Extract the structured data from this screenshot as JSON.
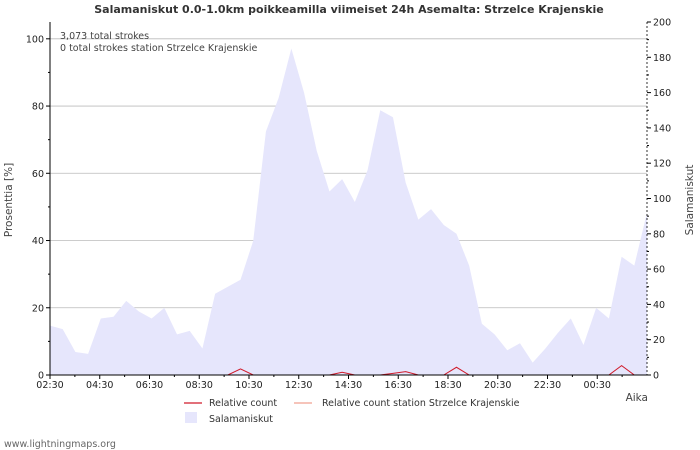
{
  "chart_data": {
    "type": "area",
    "title": "Salamaniskut 0.0-1.0km poikkeamilla viimeiset 24h Asemalta: Strzelce Krajenskie",
    "ylabel_left": "Prosenttia   [%]",
    "ylabel_right": "Salamaniskut",
    "xlabel": "Aika",
    "ylim_left": [
      0,
      105
    ],
    "ylim_right": [
      0,
      200
    ],
    "yticks_left": [
      "0",
      "20",
      "40",
      "60",
      "80",
      "100"
    ],
    "yticks_right": [
      "0",
      "20",
      "40",
      "60",
      "80",
      "100",
      "120",
      "140",
      "160",
      "180",
      "200"
    ],
    "xticks": [
      "02:30",
      "04:30",
      "06:30",
      "08:30",
      "10:30",
      "12:30",
      "14:30",
      "16:30",
      "18:30",
      "20:30",
      "22:30",
      "00:30"
    ],
    "annotations": [
      "3,073 total strokes",
      "0 total strokes station Strzelce Krajenskie"
    ],
    "legend": {
      "relative": "Relative count",
      "relative_station": "Relative count station Strzelce Krajenskie",
      "area": "Salamaniskut"
    },
    "colors": {
      "area": "#e6e6fc",
      "relative": "#d01a2a",
      "relative_station": "#f0a090",
      "grid": "#bbbbbb"
    },
    "series": [
      {
        "name": "Salamaniskut",
        "axis": "right",
        "values": [
          28,
          26,
          13,
          12,
          32,
          33,
          42,
          36,
          32,
          38,
          23,
          25,
          15,
          46,
          50,
          54,
          76,
          138,
          157,
          185,
          160,
          127,
          104,
          111,
          98,
          116,
          150,
          146,
          109,
          88,
          94,
          85,
          80,
          62,
          29,
          23,
          14,
          18,
          7,
          15,
          24,
          32,
          17,
          38,
          32,
          67,
          62,
          92
        ]
      },
      {
        "name": "Relative count",
        "axis": "left",
        "values": [
          0,
          0,
          0,
          0,
          0,
          0,
          0,
          0,
          0,
          0,
          0,
          0,
          0,
          0,
          0,
          1.8,
          0,
          0,
          0,
          0,
          0,
          0,
          0,
          0.8,
          0,
          0,
          0,
          0.5,
          1.0,
          0,
          0,
          0,
          2.3,
          0,
          0,
          0,
          0,
          0,
          0,
          0,
          0,
          0,
          0,
          0,
          0,
          2.8,
          0,
          0
        ]
      }
    ]
  },
  "credit": "www.lightningmaps.org"
}
